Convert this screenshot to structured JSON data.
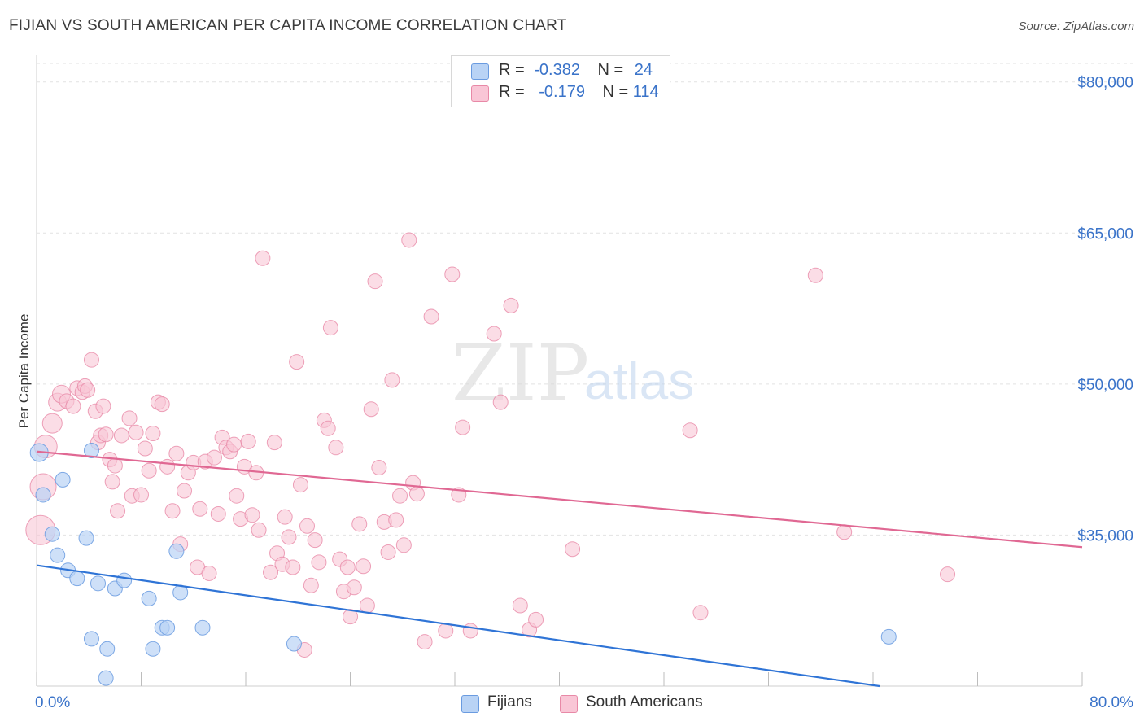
{
  "header": {
    "title": "FIJIAN VS SOUTH AMERICAN PER CAPITA INCOME CORRELATION CHART",
    "source": "Source: ZipAtlas.com"
  },
  "legend": {
    "rows": [
      {
        "r_label": "R =",
        "r_value": "-0.382",
        "n_label": "N =",
        "n_value": "24",
        "color": "#b9d3f5",
        "border": "#6a9be0"
      },
      {
        "r_label": "R =",
        "r_value": "-0.179",
        "n_label": "N =",
        "n_value": "114",
        "color": "#f9c6d6",
        "border": "#e889a7"
      }
    ]
  },
  "bottom_legend": {
    "fijians": "Fijians",
    "south_americans": "South Americans"
  },
  "watermark": {
    "zip": "ZIP",
    "atlas": "atlas"
  },
  "chart_data": {
    "type": "scatter",
    "title": "FIJIAN VS SOUTH AMERICAN PER CAPITA INCOME CORRELATION CHART",
    "xlabel": "",
    "ylabel": "Per Capita Income",
    "xlim": [
      0,
      80
    ],
    "ylim": [
      20000,
      82000
    ],
    "x_tick_labels": [
      "0.0%",
      "80.0%"
    ],
    "y_ticks": [
      35000,
      50000,
      65000,
      80000
    ],
    "y_tick_labels": [
      "$35,000",
      "$50,000",
      "$65,000",
      "$80,000"
    ],
    "grid": true,
    "legend_position": "top-center",
    "series": [
      {
        "name": "Fijians",
        "color": "#6a9be0",
        "fill": "#b9d3f5",
        "trend": {
          "x": [
            0,
            64.5
          ],
          "y": [
            32000,
            20000
          ]
        },
        "points": [
          [
            0.2,
            43200
          ],
          [
            0.5,
            39000
          ],
          [
            1.2,
            35100
          ],
          [
            1.6,
            33000
          ],
          [
            2.0,
            40500
          ],
          [
            2.4,
            31500
          ],
          [
            3.1,
            30700
          ],
          [
            3.8,
            34700
          ],
          [
            4.2,
            24700
          ],
          [
            4.7,
            30200
          ],
          [
            5.4,
            23700
          ],
          [
            6.0,
            29700
          ],
          [
            6.7,
            30500
          ],
          [
            8.6,
            28700
          ],
          [
            8.9,
            23700
          ],
          [
            9.6,
            25800
          ],
          [
            10.0,
            25800
          ],
          [
            10.7,
            33400
          ],
          [
            11.0,
            29300
          ],
          [
            12.7,
            25800
          ],
          [
            19.7,
            24200
          ],
          [
            5.3,
            20800
          ],
          [
            65.2,
            24900
          ],
          [
            4.2,
            43400
          ]
        ]
      },
      {
        "name": "South Americans",
        "color": "#e889a7",
        "fill": "#f9c6d6",
        "trend": {
          "x": [
            0,
            80
          ],
          "y": [
            43300,
            33800
          ]
        },
        "points": [
          [
            0.3,
            35500
          ],
          [
            0.5,
            39800
          ],
          [
            0.7,
            43800
          ],
          [
            1.2,
            46100
          ],
          [
            1.6,
            48200
          ],
          [
            1.9,
            49000
          ],
          [
            2.3,
            48300
          ],
          [
            2.8,
            47800
          ],
          [
            3.1,
            49600
          ],
          [
            3.5,
            49200
          ],
          [
            3.7,
            49800
          ],
          [
            3.9,
            49400
          ],
          [
            4.2,
            52400
          ],
          [
            4.5,
            47300
          ],
          [
            4.7,
            44200
          ],
          [
            4.9,
            44900
          ],
          [
            5.1,
            47800
          ],
          [
            5.3,
            45000
          ],
          [
            5.6,
            42500
          ],
          [
            5.8,
            40300
          ],
          [
            6.0,
            41900
          ],
          [
            6.2,
            37400
          ],
          [
            6.5,
            44900
          ],
          [
            7.1,
            46600
          ],
          [
            7.3,
            38900
          ],
          [
            7.6,
            45200
          ],
          [
            8.0,
            39000
          ],
          [
            8.3,
            43600
          ],
          [
            8.6,
            41400
          ],
          [
            8.9,
            45100
          ],
          [
            9.3,
            48200
          ],
          [
            9.6,
            48000
          ],
          [
            10.0,
            41800
          ],
          [
            10.4,
            37400
          ],
          [
            10.7,
            43100
          ],
          [
            11.0,
            34100
          ],
          [
            11.3,
            39400
          ],
          [
            11.6,
            41200
          ],
          [
            12.0,
            42200
          ],
          [
            12.3,
            31800
          ],
          [
            12.5,
            37600
          ],
          [
            12.9,
            42300
          ],
          [
            13.2,
            31200
          ],
          [
            13.6,
            42700
          ],
          [
            13.9,
            37100
          ],
          [
            14.2,
            44700
          ],
          [
            14.5,
            43700
          ],
          [
            14.8,
            43300
          ],
          [
            15.1,
            44000
          ],
          [
            15.3,
            38900
          ],
          [
            15.6,
            36600
          ],
          [
            15.9,
            41800
          ],
          [
            16.2,
            44300
          ],
          [
            16.5,
            37000
          ],
          [
            16.8,
            41200
          ],
          [
            17.0,
            35500
          ],
          [
            17.3,
            62500
          ],
          [
            17.9,
            31300
          ],
          [
            18.2,
            44200
          ],
          [
            18.4,
            33200
          ],
          [
            18.8,
            32100
          ],
          [
            19.0,
            36800
          ],
          [
            19.3,
            34800
          ],
          [
            19.6,
            31800
          ],
          [
            19.9,
            52200
          ],
          [
            20.2,
            40000
          ],
          [
            20.5,
            23600
          ],
          [
            20.7,
            35900
          ],
          [
            21.0,
            30000
          ],
          [
            21.3,
            34500
          ],
          [
            21.6,
            32300
          ],
          [
            22.0,
            46400
          ],
          [
            22.3,
            45600
          ],
          [
            22.5,
            55600
          ],
          [
            22.9,
            43700
          ],
          [
            23.2,
            32600
          ],
          [
            23.5,
            29400
          ],
          [
            23.8,
            31800
          ],
          [
            24.0,
            26900
          ],
          [
            24.3,
            29800
          ],
          [
            24.7,
            36100
          ],
          [
            25.0,
            31900
          ],
          [
            25.3,
            28000
          ],
          [
            25.6,
            47500
          ],
          [
            25.9,
            60200
          ],
          [
            26.2,
            41700
          ],
          [
            26.6,
            36300
          ],
          [
            26.9,
            33300
          ],
          [
            27.2,
            50400
          ],
          [
            27.5,
            36500
          ],
          [
            27.8,
            38900
          ],
          [
            28.1,
            34000
          ],
          [
            28.5,
            64300
          ],
          [
            28.8,
            40200
          ],
          [
            29.1,
            39100
          ],
          [
            29.7,
            24400
          ],
          [
            30.2,
            56700
          ],
          [
            31.3,
            25500
          ],
          [
            31.8,
            60900
          ],
          [
            32.3,
            39000
          ],
          [
            32.6,
            45700
          ],
          [
            33.2,
            25500
          ],
          [
            35.0,
            55000
          ],
          [
            35.5,
            48200
          ],
          [
            36.3,
            57800
          ],
          [
            37.0,
            28000
          ],
          [
            37.7,
            25600
          ],
          [
            38.2,
            26600
          ],
          [
            41.0,
            33600
          ],
          [
            50.0,
            45400
          ],
          [
            50.8,
            27300
          ],
          [
            59.6,
            60800
          ],
          [
            61.8,
            35300
          ],
          [
            69.7,
            31100
          ]
        ]
      }
    ]
  }
}
